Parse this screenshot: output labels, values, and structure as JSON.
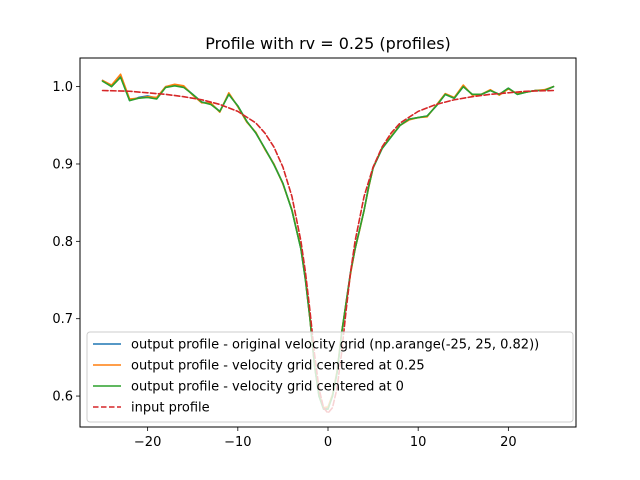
{
  "chart_data": {
    "type": "line",
    "title": "Profile with rv = 0.25 (profiles)",
    "xlabel": "",
    "ylabel": "",
    "xlim": [
      -27.5,
      27.5
    ],
    "ylim": [
      0.56,
      1.037
    ],
    "xticks": [
      -20,
      -10,
      0,
      10,
      20
    ],
    "yticks": [
      0.6,
      0.7,
      0.8,
      0.9,
      1.0
    ],
    "xtick_labels": [
      "−20",
      "−10",
      "0",
      "10",
      "20"
    ],
    "ytick_labels": [
      "0.6",
      "0.7",
      "0.8",
      "0.9",
      "1.0"
    ],
    "grid": false,
    "legend_position": "lower-left",
    "series": [
      {
        "name": "output profile - original velocity grid (np.arange(-25, 25, 0.82))",
        "color": "#1f77b4",
        "style": "solid",
        "x": [
          -25,
          -24,
          -23,
          -22,
          -21,
          -20,
          -19,
          -18,
          -17,
          -16,
          -15,
          -14,
          -13,
          -12,
          -11,
          -10,
          -9,
          -8,
          -7,
          -6,
          -5,
          -4,
          -3,
          -2.5,
          -2,
          -1.5,
          -1,
          -0.5,
          0,
          0.5,
          1,
          1.5,
          2,
          2.5,
          3,
          3.5,
          4,
          4.5,
          5,
          6,
          7,
          8,
          9,
          10,
          11,
          12,
          13,
          14,
          15,
          16,
          17,
          18,
          19,
          20,
          21,
          22,
          23,
          24,
          25
        ],
        "y": [
          1.008,
          1.0,
          1.013,
          0.982,
          0.986,
          0.988,
          0.985,
          1.0,
          1.002,
          1.0,
          0.99,
          0.98,
          0.978,
          0.968,
          0.99,
          0.975,
          0.955,
          0.94,
          0.92,
          0.9,
          0.875,
          0.84,
          0.79,
          0.75,
          0.7,
          0.64,
          0.6,
          0.585,
          0.585,
          0.6,
          0.63,
          0.68,
          0.72,
          0.76,
          0.79,
          0.815,
          0.84,
          0.87,
          0.895,
          0.92,
          0.935,
          0.95,
          0.958,
          0.96,
          0.962,
          0.975,
          0.99,
          0.985,
          1.0,
          0.99,
          0.99,
          0.995,
          0.99,
          0.998,
          0.99,
          0.993,
          0.995,
          0.995,
          1.0
        ]
      },
      {
        "name": "output profile - velocity grid centered at 0.25",
        "color": "#ff7f0e",
        "style": "solid",
        "x": [
          -25,
          -24,
          -23,
          -22,
          -21,
          -20,
          -19,
          -18,
          -17,
          -16,
          -15,
          -14,
          -13,
          -12,
          -11,
          -10,
          -9,
          -8,
          -7,
          -6,
          -5,
          -4,
          -3,
          -2.5,
          -2,
          -1.5,
          -1,
          -0.5,
          0,
          0.5,
          1,
          1.5,
          2,
          2.5,
          3,
          3.5,
          4,
          4.5,
          5,
          6,
          7,
          8,
          9,
          10,
          11,
          12,
          13,
          14,
          15,
          16,
          17,
          18,
          19,
          20,
          21,
          22,
          23,
          24,
          25
        ],
        "y": [
          1.008,
          1.002,
          1.016,
          0.984,
          0.985,
          0.987,
          0.986,
          1.0,
          1.003,
          1.001,
          0.989,
          0.979,
          0.979,
          0.967,
          0.992,
          0.974,
          0.954,
          0.941,
          0.919,
          0.9,
          0.874,
          0.841,
          0.791,
          0.752,
          0.7,
          0.64,
          0.602,
          0.585,
          0.586,
          0.602,
          0.632,
          0.681,
          0.72,
          0.758,
          0.79,
          0.814,
          0.84,
          0.869,
          0.895,
          0.921,
          0.936,
          0.95,
          0.957,
          0.96,
          0.961,
          0.976,
          0.991,
          0.986,
          1.002,
          0.989,
          0.99,
          0.996,
          0.989,
          0.997,
          0.991,
          0.993,
          0.995,
          0.996,
          1.0
        ]
      },
      {
        "name": "output profile - velocity grid centered at 0",
        "color": "#2ca02c",
        "style": "solid",
        "x": [
          -25,
          -24,
          -23,
          -22,
          -21,
          -20,
          -19,
          -18,
          -17,
          -16,
          -15,
          -14,
          -13,
          -12,
          -11,
          -10,
          -9,
          -8,
          -7,
          -6,
          -5,
          -4,
          -3,
          -2.5,
          -2,
          -1.5,
          -1,
          -0.5,
          0,
          0.5,
          1,
          1.5,
          2,
          2.5,
          3,
          3.5,
          4,
          4.5,
          5,
          6,
          7,
          8,
          9,
          10,
          11,
          12,
          13,
          14,
          15,
          16,
          17,
          18,
          19,
          20,
          21,
          22,
          23,
          24,
          25
        ],
        "y": [
          1.007,
          1.0,
          1.012,
          0.982,
          0.985,
          0.986,
          0.984,
          0.999,
          1.001,
          0.999,
          0.99,
          0.98,
          0.977,
          0.968,
          0.99,
          0.975,
          0.955,
          0.94,
          0.92,
          0.899,
          0.875,
          0.84,
          0.79,
          0.75,
          0.7,
          0.64,
          0.6,
          0.583,
          0.583,
          0.6,
          0.63,
          0.68,
          0.72,
          0.76,
          0.79,
          0.815,
          0.84,
          0.87,
          0.895,
          0.92,
          0.935,
          0.95,
          0.958,
          0.96,
          0.962,
          0.975,
          0.99,
          0.985,
          1.0,
          0.99,
          0.99,
          0.995,
          0.99,
          0.998,
          0.99,
          0.993,
          0.995,
          0.995,
          1.0
        ]
      },
      {
        "name": "input profile",
        "color": "#d62728",
        "style": "dashed",
        "x": [
          -25,
          -22,
          -20,
          -18,
          -16,
          -14,
          -12,
          -10,
          -8,
          -7,
          -6,
          -5,
          -4,
          -3,
          -2.5,
          -2,
          -1.5,
          -1,
          -0.5,
          0,
          0.5,
          1,
          1.5,
          2,
          2.5,
          3,
          4,
          5,
          6,
          7,
          8,
          10,
          12,
          14,
          16,
          18,
          20,
          22,
          25
        ],
        "y": [
          0.995,
          0.994,
          0.992,
          0.99,
          0.987,
          0.983,
          0.977,
          0.968,
          0.953,
          0.94,
          0.922,
          0.896,
          0.858,
          0.8,
          0.76,
          0.71,
          0.655,
          0.61,
          0.585,
          0.578,
          0.585,
          0.61,
          0.655,
          0.71,
          0.76,
          0.8,
          0.858,
          0.896,
          0.922,
          0.94,
          0.953,
          0.968,
          0.977,
          0.983,
          0.987,
          0.99,
          0.992,
          0.994,
          0.995
        ]
      }
    ]
  }
}
